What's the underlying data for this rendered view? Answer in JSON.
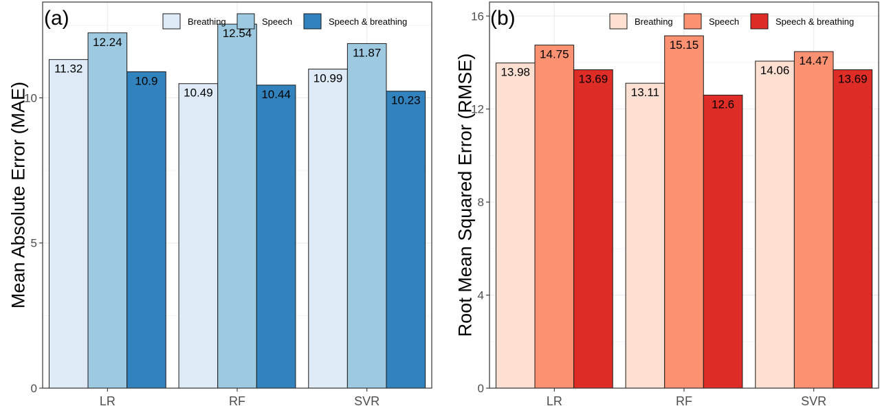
{
  "chart_data": [
    {
      "type": "bar",
      "panel_label": "(a)",
      "categories": [
        "LR",
        "RF",
        "SVR"
      ],
      "ylabel": "Mean Absolute Error (MAE)",
      "xlabel": "",
      "ylim": [
        0,
        13.3
      ],
      "yticks": [
        0,
        5,
        10
      ],
      "grid": true,
      "legend_position": "top-right",
      "series": [
        {
          "name": "Breathing",
          "color": "#deebf7",
          "values": [
            11.32,
            10.49,
            10.99
          ]
        },
        {
          "name": "Speech",
          "color": "#9ecae1",
          "values": [
            12.24,
            12.54,
            11.87
          ]
        },
        {
          "name": "Speech & breathing",
          "color": "#3182bd",
          "values": [
            10.9,
            10.44,
            10.23
          ]
        }
      ]
    },
    {
      "type": "bar",
      "panel_label": "(b)",
      "categories": [
        "LR",
        "RF",
        "SVR"
      ],
      "ylabel": "Root Mean Squared Error (RMSE)",
      "xlabel": "",
      "ylim": [
        0,
        16.6
      ],
      "yticks": [
        0,
        4,
        8,
        12,
        16
      ],
      "grid": true,
      "legend_position": "top-right",
      "series": [
        {
          "name": "Breathing",
          "color": "#fee0d2",
          "values": [
            13.98,
            13.11,
            14.06
          ]
        },
        {
          "name": "Speech",
          "color": "#fc9272",
          "values": [
            14.75,
            15.15,
            14.47
          ]
        },
        {
          "name": "Speech & breathing",
          "color": "#de2d26",
          "values": [
            13.69,
            12.6,
            13.69
          ]
        }
      ]
    }
  ]
}
